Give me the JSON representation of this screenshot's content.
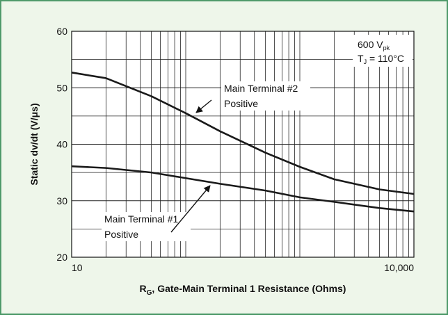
{
  "chart_data": {
    "type": "line",
    "xlabel": {
      "main": "R",
      "sub": "G",
      "rest": ", Gate-Main Terminal 1 Resistance (Ohms)"
    },
    "ylabel": "Static dv/dt (V/μs)",
    "x": [
      10,
      20,
      50,
      100,
      200,
      500,
      1000,
      2000,
      5000,
      10000
    ],
    "series": [
      {
        "name": "Main Terminal #2",
        "name2": "Positive",
        "color": "#1a1a1a",
        "values": [
          52.7,
          51.7,
          48.5,
          45.5,
          42.3,
          38.5,
          36,
          33.8,
          32,
          31.2
        ]
      },
      {
        "name": "Main Terminal #1",
        "name2": "Positive",
        "color": "#1a1a1a",
        "values": [
          36.1,
          35.8,
          35,
          34,
          33,
          31.8,
          30.6,
          29.8,
          28.7,
          28.1
        ]
      }
    ],
    "xlim": [
      10,
      10000
    ],
    "xticks": [
      10,
      {
        "value": 10000,
        "label": "10,000"
      }
    ],
    "x_minor_ticks": [
      20,
      30,
      40,
      50,
      60,
      70,
      80,
      90,
      100,
      200,
      300,
      400,
      500,
      600,
      700,
      800,
      900,
      1000,
      2000,
      3000,
      4000,
      5000,
      6000,
      7000,
      8000,
      9000
    ],
    "ylim": [
      20,
      60
    ],
    "yticks": [
      20,
      30,
      40,
      50,
      60
    ],
    "y_minor_ticks": [
      25,
      35,
      45,
      55
    ],
    "log_x": true,
    "grid": true,
    "conditions": {
      "v": {
        "main": "600 V",
        "sub": "pk"
      },
      "t": {
        "main": "T",
        "sub": "J",
        "rest": " = 110°C"
      }
    }
  }
}
